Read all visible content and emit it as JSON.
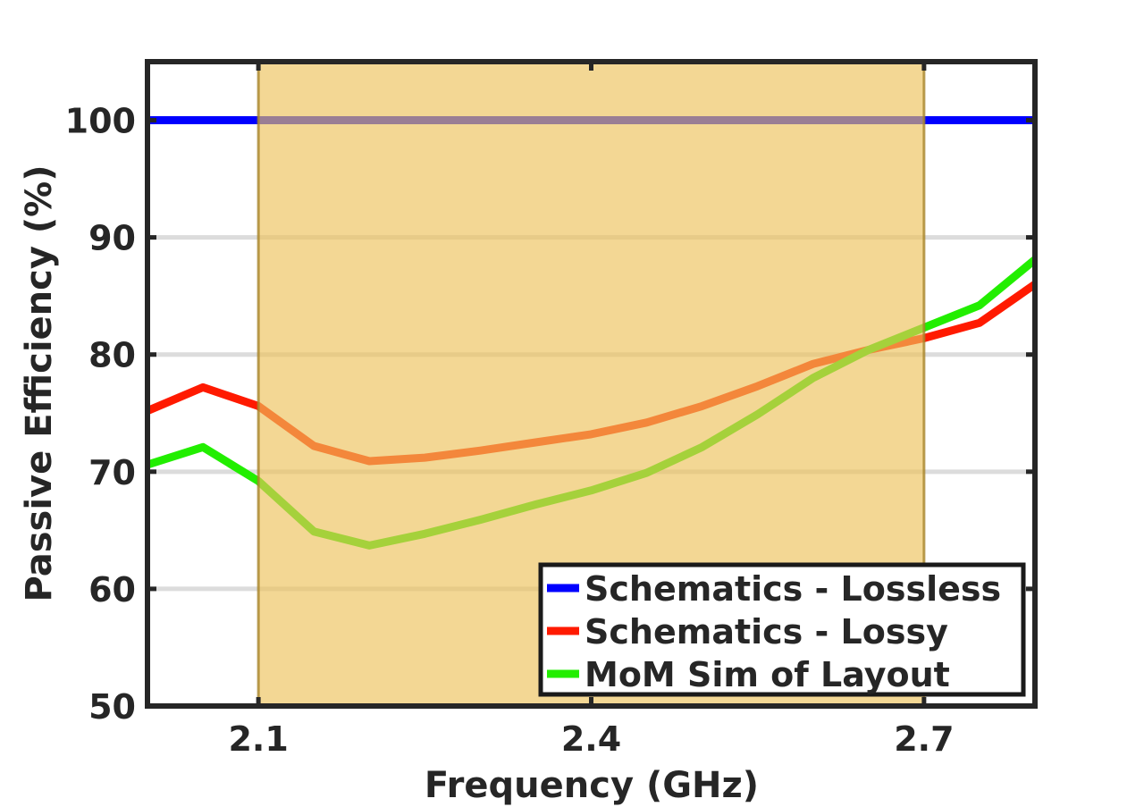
{
  "chart_data": {
    "type": "line",
    "xlabel": "Frequency (GHz)",
    "ylabel": "Passive Efficiency (%)",
    "xlim": [
      2.0,
      2.8
    ],
    "ylim": [
      50,
      105
    ],
    "xticks": [
      2.1,
      2.4,
      2.7
    ],
    "xtick_labels": [
      "2.1",
      "2.4",
      "2.7"
    ],
    "yticks": [
      50,
      60,
      70,
      80,
      90,
      100
    ],
    "ytick_labels": [
      "50",
      "60",
      "70",
      "80",
      "90",
      "100"
    ],
    "grid": "horizontal",
    "legend_position": "bottom-right",
    "shaded_band": {
      "x_start": 2.1,
      "x_end": 2.7,
      "color": "#edc25a"
    },
    "series": [
      {
        "name": "Schematics - Lossless",
        "color": "#0000ff",
        "x": [
          2.0,
          2.8
        ],
        "y": [
          100,
          100
        ]
      },
      {
        "name": "Schematics - Lossy",
        "color": "#ff1a00",
        "x": [
          2.0,
          2.05,
          2.1,
          2.15,
          2.2,
          2.25,
          2.3,
          2.35,
          2.4,
          2.45,
          2.5,
          2.55,
          2.6,
          2.65,
          2.7,
          2.75,
          2.8
        ],
        "y": [
          75.2,
          77.2,
          75.6,
          72.2,
          70.9,
          71.2,
          71.8,
          72.5,
          73.2,
          74.2,
          75.6,
          77.3,
          79.2,
          80.4,
          81.4,
          82.7,
          86.0
        ]
      },
      {
        "name": "MoM Sim of Layout",
        "color": "#22ee00",
        "x": [
          2.0,
          2.05,
          2.1,
          2.15,
          2.2,
          2.25,
          2.3,
          2.35,
          2.4,
          2.45,
          2.5,
          2.55,
          2.6,
          2.65,
          2.7,
          2.75,
          2.8
        ],
        "y": [
          70.6,
          72.1,
          69.2,
          64.9,
          63.7,
          64.7,
          65.9,
          67.2,
          68.4,
          69.9,
          72.1,
          74.9,
          78.0,
          80.4,
          82.3,
          84.2,
          88.1
        ]
      }
    ]
  }
}
